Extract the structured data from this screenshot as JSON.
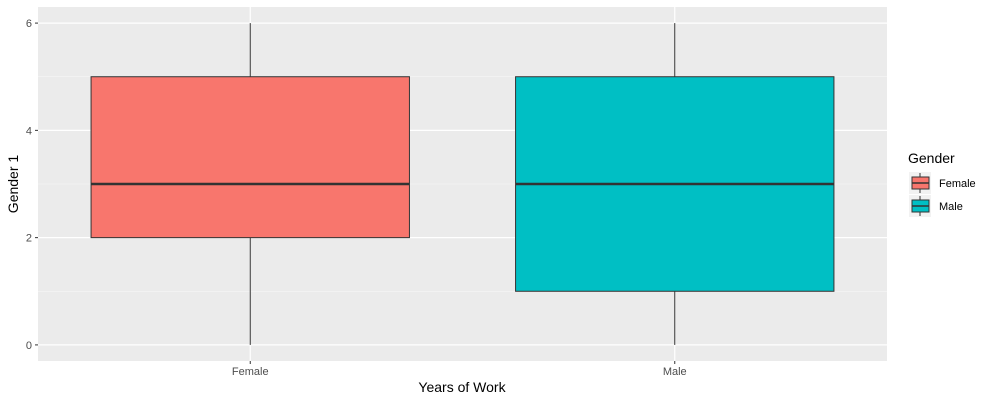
{
  "chart_data": {
    "type": "box",
    "title": "",
    "xlabel": "Years of Work",
    "ylabel": "Gender 1",
    "categories": [
      "Female",
      "Male"
    ],
    "ylim": [
      -0.3,
      6.3
    ],
    "yticks": [
      0,
      2,
      4,
      6
    ],
    "grid": true,
    "legend": {
      "title": "Gender",
      "position": "right",
      "entries": [
        "Female",
        "Male"
      ]
    },
    "series": [
      {
        "name": "Female",
        "category": "Female",
        "min": 0,
        "q1": 2,
        "median": 3,
        "q3": 5,
        "max": 6,
        "color": "#F8766D"
      },
      {
        "name": "Male",
        "category": "Male",
        "min": 0,
        "q1": 1,
        "median": 3,
        "q3": 5,
        "max": 6,
        "color": "#00BFC4"
      }
    ]
  },
  "colors": {
    "panel_background": "#EBEBEB",
    "grid_major": "#FFFFFF",
    "grid_minor": "#F5F5F5",
    "box_outline": "#333333"
  }
}
